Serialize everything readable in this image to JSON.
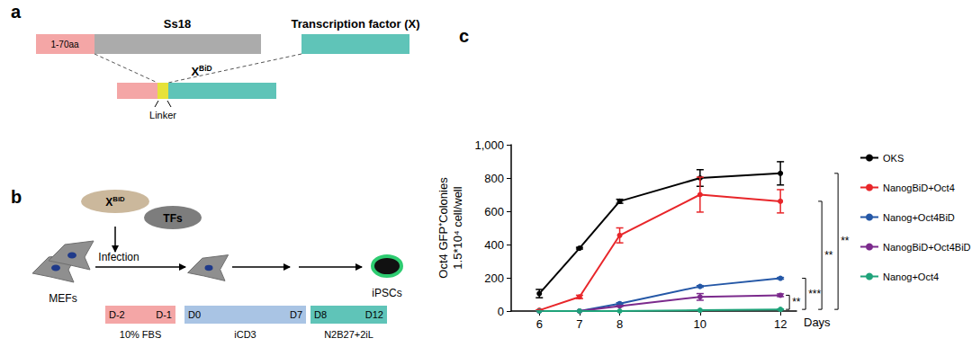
{
  "panel_a": {
    "label": "a",
    "parts": [
      "1-70aa",
      "Ss18",
      "Transcription factor (X)"
    ],
    "fusion": {
      "base": "X",
      "sup": "BiD"
    },
    "linker": "Linker"
  },
  "panel_b": {
    "label": "b",
    "fusion": {
      "base": "X",
      "sup": "BiD"
    },
    "factor": "TFs",
    "start": "MEFs",
    "step": "Infection",
    "end": "iPSCs",
    "stages": [
      {
        "days": [
          "D-2",
          "D-1"
        ],
        "medium": "10% FBS",
        "color": "#f4a6a6"
      },
      {
        "days": [
          "D0",
          "D7"
        ],
        "medium": "iCD3",
        "color": "#a9c4e4"
      },
      {
        "days": [
          "D8",
          "D12"
        ],
        "medium": "N2B27+2iL",
        "color": "#5fc4b8"
      }
    ]
  },
  "chart_data": {
    "label": "c",
    "type": "line",
    "x": [
      6,
      7,
      8,
      10,
      12
    ],
    "xlim": [
      5.3,
      12.4
    ],
    "xticks": [
      6,
      7,
      8,
      10,
      12
    ],
    "x_label": "Days",
    "ylim": [
      0,
      1000
    ],
    "yticks": [
      0,
      200,
      400,
      600,
      800,
      1000
    ],
    "y_label": [
      "Oct4 GFP⁺Colonies",
      "1.5*10⁴ cell/well"
    ],
    "grid": false,
    "legend": "right",
    "marker": "circle",
    "line_style": "solid",
    "series": [
      {
        "name": "OKS",
        "color": "#000000",
        "values": [
          105,
          378,
          660,
          800,
          828
        ],
        "errors": [
          25,
          5,
          12,
          50,
          70
        ]
      },
      {
        "name": "NanogBiD+Oct4",
        "color": "#e8262a",
        "values": [
          5,
          85,
          455,
          700,
          660
        ],
        "errors": [
          2,
          10,
          45,
          105,
          70
        ]
      },
      {
        "name": "Nanog+Oct4BiD",
        "color": "#2457a6",
        "values": [
          0,
          0,
          45,
          148,
          197
        ],
        "errors": [
          0,
          0,
          5,
          5,
          5
        ]
      },
      {
        "name": "NanogBiD+Oct4BiD",
        "color": "#7b2a8c",
        "values": [
          0,
          0,
          30,
          85,
          95
        ],
        "errors": [
          0,
          0,
          3,
          20,
          8
        ]
      },
      {
        "name": "Nanog+Oct4",
        "color": "#1fa37a",
        "values": [
          0,
          0,
          0,
          5,
          10
        ],
        "errors": [
          0,
          0,
          0,
          2,
          2
        ]
      }
    ],
    "significance": [
      {
        "between": [
          "OKS",
          "Nanog+Oct4"
        ],
        "label": "**"
      },
      {
        "between": [
          "NanogBiD+Oct4",
          "Nanog+Oct4"
        ],
        "label": "**"
      },
      {
        "between": [
          "Nanog+Oct4BiD",
          "Nanog+Oct4"
        ],
        "label": "***"
      },
      {
        "between": [
          "NanogBiD+Oct4BiD",
          "Nanog+Oct4"
        ],
        "label": "**"
      }
    ]
  }
}
